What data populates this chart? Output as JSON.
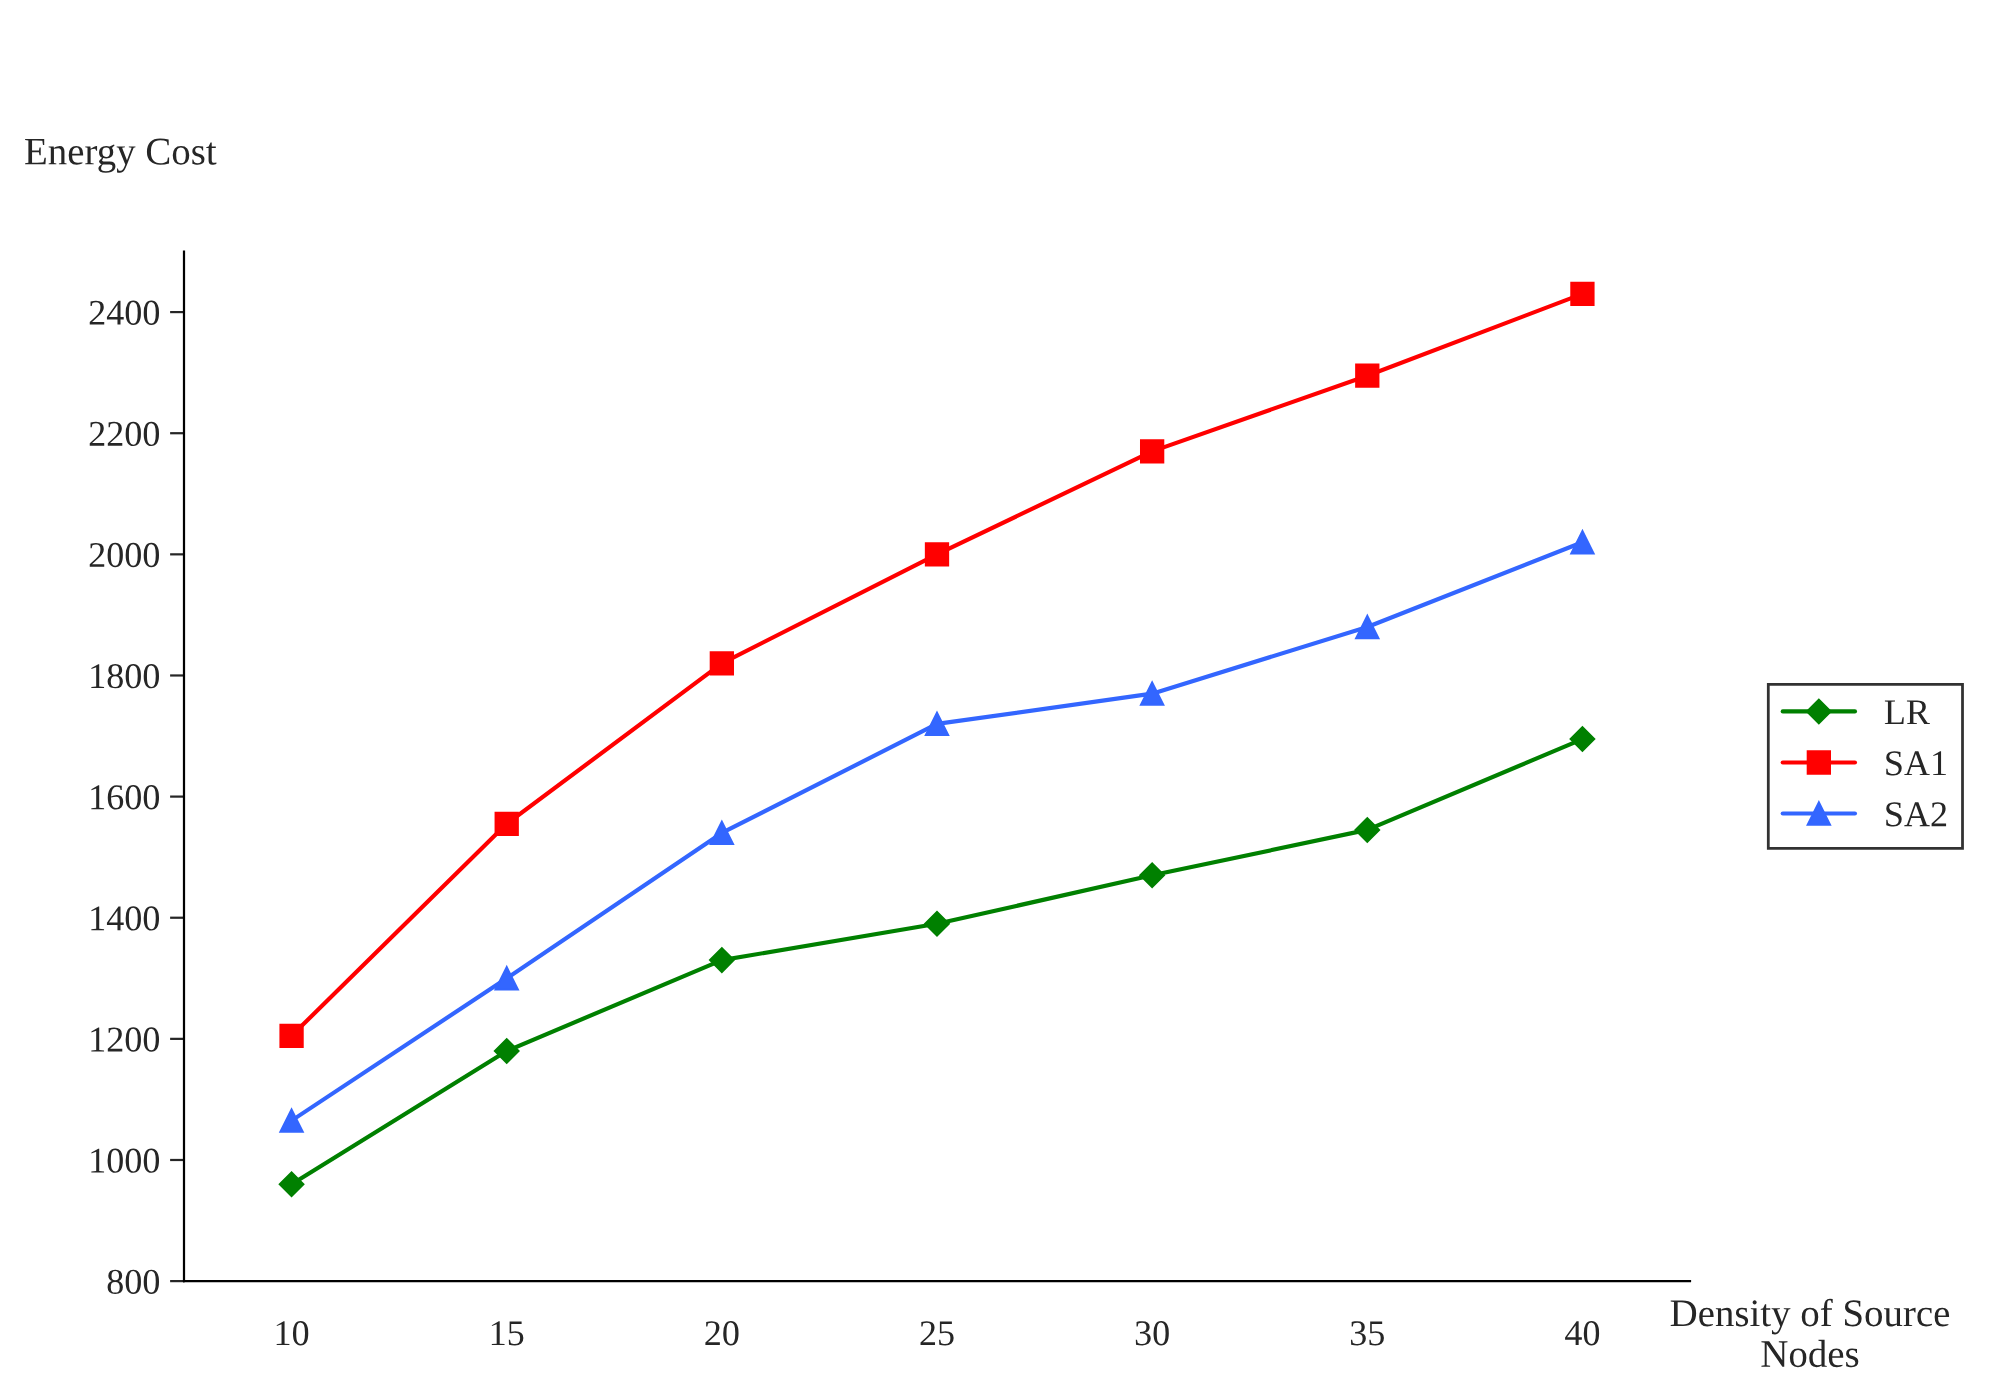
{
  "chart_data": {
    "type": "line",
    "ylabel": "Energy Cost",
    "xlabel": "Density of Source Nodes",
    "categories": [
      "10",
      "15",
      "20",
      "25",
      "30",
      "35",
      "40"
    ],
    "series": [
      {
        "name": "LR",
        "color": "#008000",
        "marker": "diamond",
        "values": [
          960,
          1180,
          1330,
          1390,
          1470,
          1545,
          1695
        ]
      },
      {
        "name": "SA1",
        "color": "#ff0000",
        "marker": "square",
        "values": [
          1205,
          1555,
          1820,
          2000,
          2170,
          2295,
          2430
        ]
      },
      {
        "name": "SA2",
        "color": "#3366ff",
        "marker": "triangle",
        "values": [
          1065,
          1300,
          1540,
          1720,
          1770,
          1880,
          2020
        ]
      }
    ],
    "ylim": [
      800,
      2500
    ],
    "yticks": [
      800,
      1000,
      1200,
      1400,
      1600,
      1800,
      2000,
      2200,
      2400
    ],
    "grid": false,
    "legend": "right",
    "line_style": "solid"
  }
}
